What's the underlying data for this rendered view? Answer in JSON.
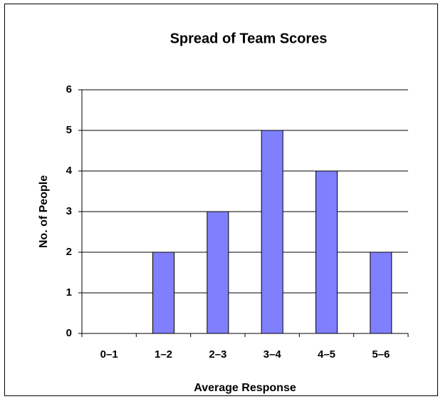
{
  "chart_data": {
    "type": "bar",
    "title": "Spread of Team Scores",
    "x_label": "Average Response",
    "y_label": "No. of People",
    "categories": [
      "0–1",
      "1–2",
      "2–3",
      "3–4",
      "4–5",
      "5–6"
    ],
    "values": [
      0,
      2,
      3,
      5,
      4,
      2
    ],
    "color": "#8080ff",
    "ylim": [
      0,
      6
    ],
    "yticks": [
      0,
      1,
      2,
      3,
      4,
      5,
      6
    ],
    "grid": true
  }
}
